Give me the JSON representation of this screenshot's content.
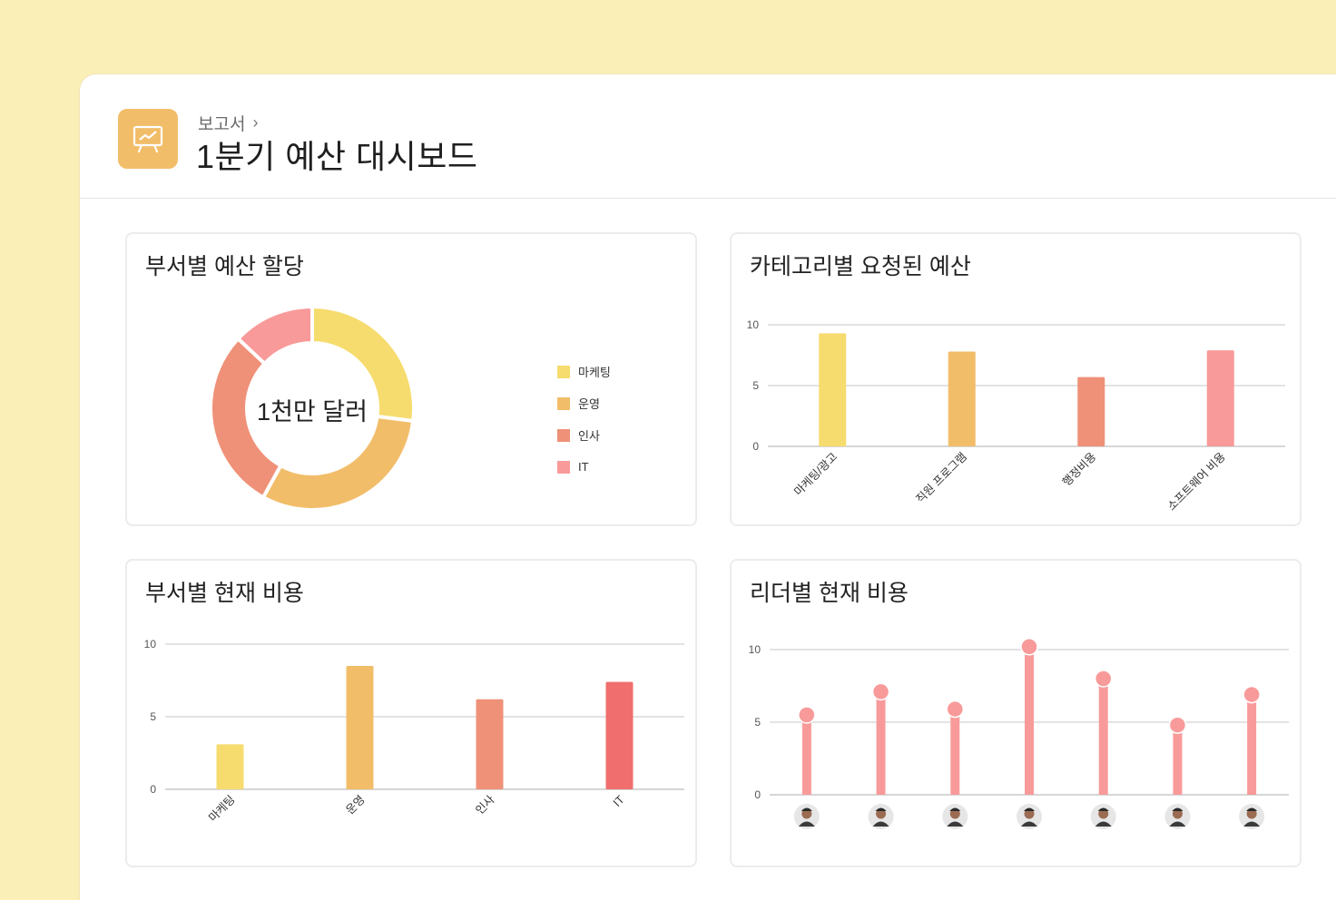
{
  "header": {
    "breadcrumb": "보고서",
    "title": "1분기 예산 대시보드",
    "icon": "presentation-chart-icon",
    "accent": "#f2bd69"
  },
  "chart_data": [
    {
      "type": "pie",
      "title": "부서별 예산 할당",
      "center_label": "1천만 달러",
      "categories": [
        "마케팅",
        "운영",
        "인사",
        "IT"
      ],
      "values": [
        27,
        31,
        29,
        13
      ],
      "colors": [
        "#f6dc6e",
        "#f2bd69",
        "#ef9178",
        "#f99a9a"
      ],
      "legend": "right"
    },
    {
      "type": "bar",
      "title": "카테고리별 요청된 예산",
      "categories": [
        "마케팅/광고",
        "직원 프로그램",
        "행정비용",
        "소프트웨어 비용"
      ],
      "values": [
        9.3,
        7.8,
        5.7,
        7.9
      ],
      "colors": [
        "#f6dc6e",
        "#f2bd69",
        "#ef9178",
        "#f99a9a"
      ],
      "yticks": [
        0,
        5,
        10
      ],
      "ylim": [
        0,
        10
      ],
      "grid": true
    },
    {
      "type": "bar",
      "title": "부서별 현재 비용",
      "categories": [
        "마케팅",
        "운영",
        "인사",
        "IT"
      ],
      "values": [
        3.1,
        8.5,
        6.2,
        7.4
      ],
      "colors": [
        "#f6dc6e",
        "#f2bd69",
        "#ef9178",
        "#f06e6e"
      ],
      "yticks": [
        0,
        5,
        10
      ],
      "ylim": [
        0,
        10
      ],
      "grid": true
    },
    {
      "type": "bar",
      "title": "리더별 현재 비용",
      "categories": [
        "",
        "",
        "",
        "",
        "",
        "",
        ""
      ],
      "values": [
        5.5,
        7.1,
        5.9,
        10.2,
        8.0,
        4.8,
        6.9
      ],
      "colors": [
        "#f99a9a"
      ],
      "category_icons": [
        "avatar-icon",
        "avatar-icon",
        "avatar-icon",
        "avatar-icon",
        "avatar-icon",
        "avatar-icon",
        "avatar-icon"
      ],
      "yticks": [
        0,
        5,
        10
      ],
      "ylim": [
        0,
        10
      ],
      "grid": true
    }
  ]
}
